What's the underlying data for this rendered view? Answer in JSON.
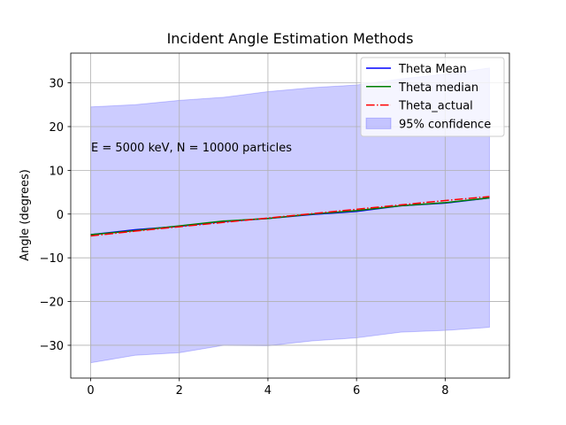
{
  "chart_data": {
    "type": "line",
    "title": "Incident Angle Estimation Methods",
    "xlabel": "",
    "ylabel": "Angle (degrees)",
    "xlim": [
      -0.45,
      9.45
    ],
    "ylim": [
      -37.5,
      36.8
    ],
    "xticks": [
      0,
      2,
      4,
      6,
      8
    ],
    "yticks": [
      -30,
      -20,
      -10,
      0,
      10,
      20,
      30
    ],
    "grid": true,
    "legend_position": "top-right",
    "annotation": "E = 5000 keV, N = 10000 particles",
    "x": [
      0,
      1,
      2,
      3,
      4,
      5,
      6,
      7,
      8,
      9
    ],
    "series": [
      {
        "name": "Theta Mean",
        "color": "#0000ff",
        "style": "solid",
        "values": [
          -4.7,
          -3.6,
          -2.8,
          -1.7,
          -1.0,
          -0.1,
          0.6,
          1.9,
          2.5,
          3.7
        ]
      },
      {
        "name": "Theta median",
        "color": "#008000",
        "style": "solid",
        "values": [
          -4.7,
          -3.8,
          -2.7,
          -1.6,
          -1.0,
          0.0,
          0.8,
          1.9,
          2.6,
          3.7
        ]
      },
      {
        "name": "Theta_actual",
        "color": "#ff0000",
        "style": "dashdot",
        "values": [
          -5.0,
          -3.9,
          -2.9,
          -1.9,
          -0.9,
          0.1,
          1.1,
          2.1,
          3.1,
          4.0
        ]
      }
    ],
    "band": {
      "name": "95% confidence",
      "color": "#0000ff",
      "upper": [
        24.5,
        25.0,
        26.0,
        26.7,
        28.0,
        28.9,
        29.5,
        30.9,
        32.0,
        33.4
      ],
      "lower": [
        -34.0,
        -32.3,
        -31.7,
        -30.0,
        -30.1,
        -29.0,
        -28.3,
        -27.0,
        -26.6,
        -25.9
      ]
    }
  }
}
